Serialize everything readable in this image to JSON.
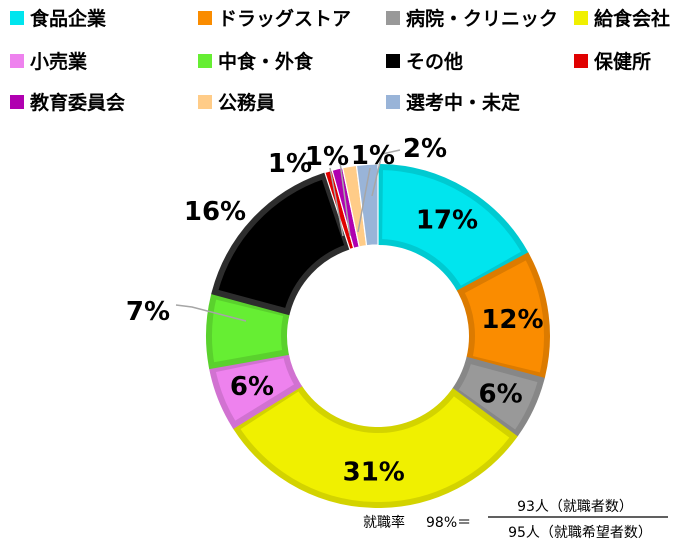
{
  "chart_data": {
    "type": "pie",
    "donut": true,
    "title": "",
    "series": [
      {
        "label": "食品企業",
        "value": 17,
        "display": "17%",
        "color": "#00E5EE"
      },
      {
        "label": "ドラッグストア",
        "value": 12,
        "display": "12%",
        "color": "#FA8C00"
      },
      {
        "label": "病院・クリニック",
        "value": 6,
        "display": "6%",
        "color": "#999999"
      },
      {
        "label": "給食会社",
        "value": 31,
        "display": "31%",
        "color": "#F0F000"
      },
      {
        "label": "小売業",
        "value": 6,
        "display": "6%",
        "color": "#EE82EE"
      },
      {
        "label": "中食・外食",
        "value": 7,
        "display": "7%",
        "color": "#66EE33"
      },
      {
        "label": "その他",
        "value": 16,
        "display": "16%",
        "color": "#000000"
      },
      {
        "label": "保健所",
        "value": 0.7,
        "display": "1%",
        "color": "#E00000"
      },
      {
        "label": "教育委員会",
        "value": 1,
        "display": "1%",
        "color": "#B000B0"
      },
      {
        "label": "公務員",
        "value": 1.3,
        "display": "1%",
        "color": "#FFCC88"
      },
      {
        "label": "選考中・未定",
        "value": 2,
        "display": "2%",
        "color": "#99B4D8"
      }
    ],
    "legend_placement": "top"
  },
  "formula": {
    "label": "就職率",
    "rate": "98%＝",
    "numerator": "93人（就職者数）",
    "denominator": "95人（就職希望者数）"
  }
}
